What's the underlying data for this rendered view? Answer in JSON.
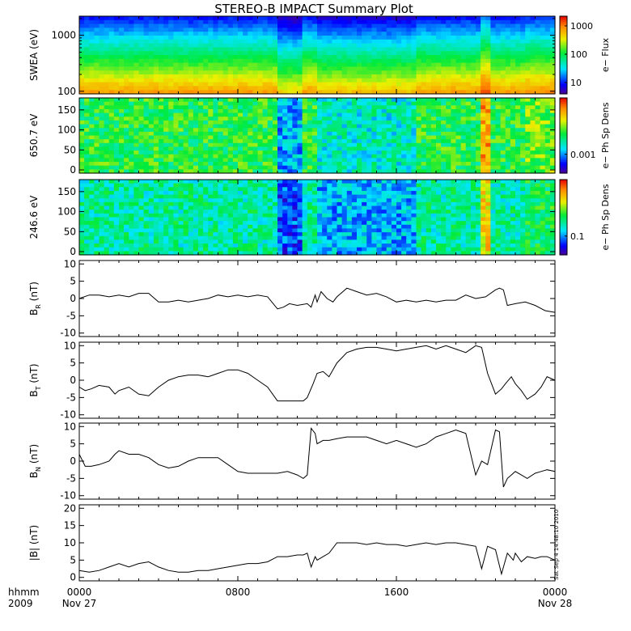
{
  "title": "STEREO-B IMPACT Summary Plot",
  "timestamp": "Sat Sep  4 14:48:10 2010",
  "time_axis": {
    "label_top": "hhmm",
    "label_bottom": "2009",
    "ticks": [
      {
        "hour": 0,
        "label": "0000",
        "date": "Nov 27"
      },
      {
        "hour": 8,
        "label": "0800",
        "date": ""
      },
      {
        "hour": 16,
        "label": "1600",
        "date": ""
      },
      {
        "hour": 24,
        "label": "0000",
        "date": "Nov 28"
      }
    ]
  },
  "chart_data": [
    {
      "type": "heatmap",
      "ylabel": "SWEA (eV)",
      "yscale": "log",
      "ylim": [
        90,
        2200
      ],
      "yticks": [
        {
          "v": 100,
          "label": "100"
        },
        {
          "v": 1000,
          "label": "1000"
        }
      ],
      "colorbar": {
        "label": "e− Flux",
        "scale": "log",
        "range": [
          4,
          2200
        ],
        "ticks": [
          {
            "v": 10,
            "label": "10"
          },
          {
            "v": 100,
            "label": "100"
          },
          {
            "v": 1000,
            "label": "1000"
          }
        ]
      }
    },
    {
      "type": "heatmap",
      "ylabel": "650.7 eV",
      "ylim": [
        -8,
        180
      ],
      "yticks": [
        {
          "v": 0,
          "label": "0"
        },
        {
          "v": 50,
          "label": "50"
        },
        {
          "v": 100,
          "label": "100"
        },
        {
          "v": 150,
          "label": "150"
        }
      ],
      "colorbar": {
        "label": "e− Ph Sp Dens",
        "scale": "log",
        "ticks": [
          {
            "pos": 0.25,
            "label": "0.001"
          }
        ]
      }
    },
    {
      "type": "heatmap",
      "ylabel": "246.6 eV",
      "ylim": [
        -8,
        180
      ],
      "yticks": [
        {
          "v": 0,
          "label": "0"
        },
        {
          "v": 50,
          "label": "50"
        },
        {
          "v": 100,
          "label": "100"
        },
        {
          "v": 150,
          "label": "150"
        }
      ],
      "colorbar": {
        "label": "e− Ph Sp Dens",
        "scale": "log",
        "ticks": [
          {
            "pos": 0.25,
            "label": "0.1"
          }
        ]
      }
    },
    {
      "type": "line",
      "ylabel": "B_R (nT)",
      "ylim": [
        -11,
        11
      ],
      "yticks": [
        -10,
        -5,
        0,
        5,
        10
      ],
      "x": [
        0,
        0.5,
        1,
        1.5,
        2,
        2.5,
        3,
        3.5,
        3.8,
        4,
        4.5,
        5,
        5.5,
        6,
        6.5,
        7,
        7.5,
        8,
        8.5,
        9,
        9.5,
        10,
        10.3,
        10.6,
        11,
        11.5,
        11.7,
        11.9,
        12,
        12.2,
        12.5,
        12.8,
        13,
        13.2,
        13.5,
        14,
        14.5,
        15,
        15.5,
        16,
        16.5,
        17,
        17.5,
        18,
        18.5,
        19,
        19.5,
        20,
        20.5,
        21,
        21.2,
        21.4,
        21.6,
        22,
        22.5,
        23,
        23.5,
        24
      ],
      "y": [
        0,
        1,
        1,
        0.5,
        1,
        0.5,
        1.5,
        1.5,
        0,
        -1,
        -1,
        -0.5,
        -1,
        -0.5,
        0,
        1,
        0.5,
        1,
        0.5,
        1,
        0.5,
        -3,
        -2.5,
        -1.5,
        -2,
        -1.5,
        -2.5,
        1,
        -1,
        2,
        0,
        -1,
        0.5,
        1.5,
        3,
        2,
        1,
        1.5,
        0.5,
        -1,
        -0.5,
        -1,
        -0.5,
        -1,
        -0.5,
        -0.5,
        1,
        0,
        0.5,
        2.5,
        3,
        2.5,
        -2,
        -1.5,
        -1,
        -2,
        -3.5,
        -4
      ]
    },
    {
      "type": "line",
      "ylabel": "B_T (nT)",
      "ylim": [
        -11,
        11
      ],
      "yticks": [
        -10,
        -5,
        0,
        5,
        10
      ],
      "x": [
        0,
        0.3,
        0.6,
        1,
        1.5,
        1.8,
        2,
        2.5,
        3,
        3.5,
        4,
        4.5,
        5,
        5.5,
        6,
        6.5,
        7,
        7.5,
        8,
        8.5,
        9,
        9.5,
        10,
        10.5,
        11,
        11.3,
        11.5,
        11.8,
        12,
        12.3,
        12.6,
        13,
        13.5,
        14,
        14.5,
        15,
        15.5,
        16,
        16.5,
        17,
        17.5,
        18,
        18.5,
        19,
        19.5,
        20,
        20.3,
        20.6,
        21,
        21.3,
        21.5,
        21.8,
        22,
        22.3,
        22.6,
        23,
        23.3,
        23.6,
        24
      ],
      "y": [
        -2,
        -3,
        -2.5,
        -1.5,
        -2,
        -4,
        -3,
        -2,
        -4,
        -4.5,
        -2,
        0,
        1,
        1.5,
        1.5,
        1,
        2,
        3,
        3,
        2,
        0,
        -2,
        -6,
        -6,
        -6,
        -6,
        -5,
        -1,
        2,
        2.5,
        1,
        5,
        8,
        9,
        9.5,
        9.5,
        9,
        8.5,
        9,
        9.5,
        10,
        9,
        10,
        9,
        8,
        10,
        9.5,
        2,
        -4,
        -2.5,
        -1,
        1,
        -1,
        -3,
        -5.5,
        -4,
        -2,
        1,
        0
      ]
    },
    {
      "type": "line",
      "ylabel": "B_N (nT)",
      "ylim": [
        -11,
        11
      ],
      "yticks": [
        -10,
        -5,
        0,
        5,
        10
      ],
      "x": [
        0,
        0.3,
        0.6,
        1,
        1.5,
        1.8,
        2,
        2.5,
        3,
        3.5,
        4,
        4.5,
        5,
        5.5,
        6,
        6.5,
        7,
        7.5,
        8,
        8.5,
        9,
        9.5,
        10,
        10.5,
        11,
        11.3,
        11.5,
        11.7,
        11.9,
        12,
        12.3,
        12.6,
        13,
        13.5,
        14,
        14.5,
        15,
        15.5,
        16,
        16.5,
        17,
        17.5,
        18,
        18.5,
        19,
        19.5,
        20,
        20.3,
        20.6,
        21,
        21.2,
        21.4,
        21.6,
        21.8,
        22,
        22.3,
        22.6,
        23,
        23.3,
        23.6,
        24
      ],
      "y": [
        2,
        -1.5,
        -1.5,
        -1,
        0,
        2,
        3,
        2,
        2,
        1,
        -1,
        -2,
        -1.5,
        0,
        1,
        1,
        1,
        -1,
        -3,
        -3.5,
        -3.5,
        -3.5,
        -3.5,
        -3,
        -4,
        -5,
        -4,
        9.5,
        8,
        5,
        6,
        6,
        6.5,
        7,
        7,
        7,
        6,
        5,
        6,
        5,
        4,
        5,
        7,
        8,
        9,
        8,
        -4,
        0,
        -1,
        9,
        8.5,
        -7.5,
        -5,
        -4,
        -3,
        -4,
        -5,
        -3.5,
        -3,
        -2.5,
        -3
      ]
    },
    {
      "type": "line",
      "ylabel": "|B| (nT)",
      "ylim": [
        -1,
        21
      ],
      "yticks": [
        0,
        5,
        10,
        15,
        20
      ],
      "x": [
        0,
        0.5,
        1,
        1.5,
        2,
        2.5,
        3,
        3.5,
        4,
        4.5,
        5,
        5.5,
        6,
        6.5,
        7,
        7.5,
        8,
        8.5,
        9,
        9.5,
        10,
        10.5,
        11,
        11.3,
        11.5,
        11.7,
        11.9,
        12,
        12.3,
        12.6,
        13,
        13.5,
        14,
        14.5,
        15,
        15.5,
        16,
        16.5,
        17,
        17.5,
        18,
        18.5,
        19,
        19.5,
        20,
        20.3,
        20.6,
        21,
        21.3,
        21.6,
        21.9,
        22,
        22.3,
        22.6,
        23,
        23.3,
        23.6,
        24
      ],
      "y": [
        2,
        1.5,
        2,
        3,
        4,
        3,
        4,
        4.5,
        3,
        2,
        1.5,
        1.5,
        2,
        2,
        2.5,
        3,
        3.5,
        4,
        4,
        4.5,
        6,
        6,
        6.5,
        6.5,
        7,
        3,
        6,
        5,
        6,
        7,
        10,
        10,
        10,
        9.5,
        10,
        9.5,
        9.5,
        9,
        9.5,
        10,
        9.5,
        10,
        10,
        9.5,
        9,
        2.5,
        9,
        8,
        1,
        7,
        5,
        7,
        4.5,
        6,
        5.5,
        6,
        6,
        5
      ]
    }
  ]
}
